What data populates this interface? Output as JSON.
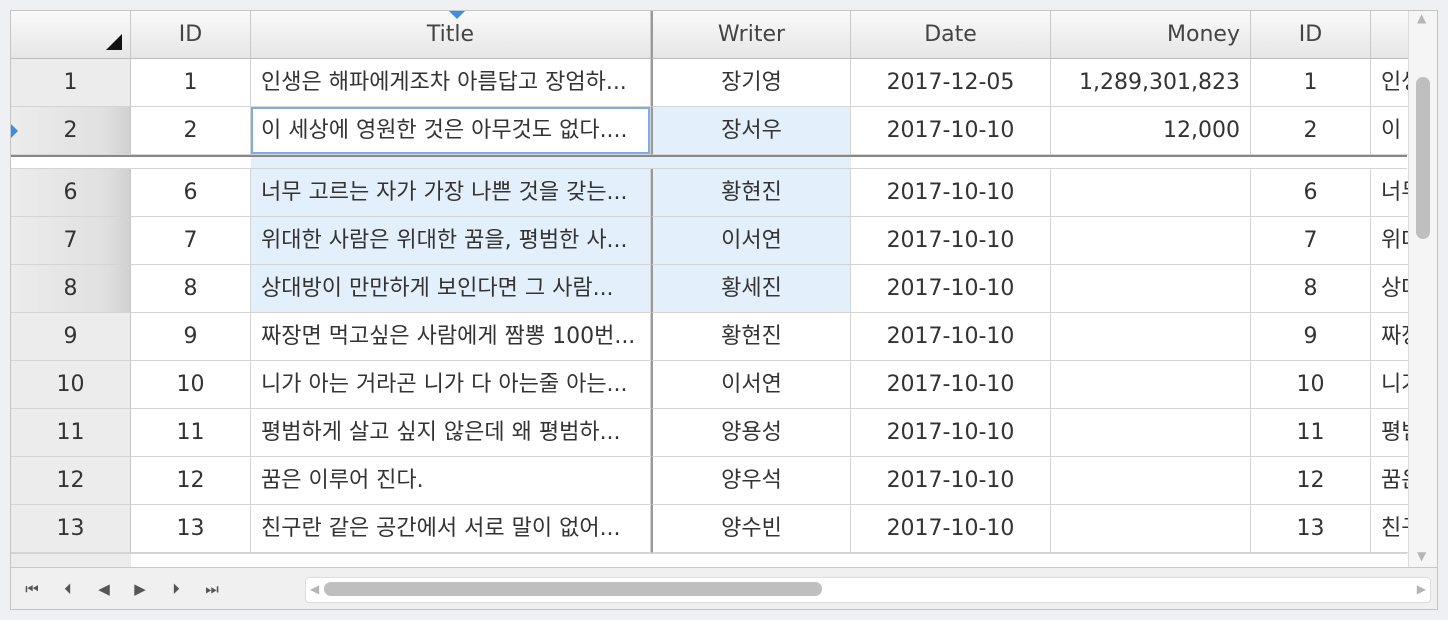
{
  "columns": {
    "id": "ID",
    "title": "Title",
    "writer": "Writer",
    "date": "Date",
    "money": "Money",
    "id2": "ID"
  },
  "rows": [
    {
      "rownum": "1",
      "id": "1",
      "title": "인생은 해파에게조차 아름답고 장엄하...",
      "writer": "장기영",
      "date": "2017-12-05",
      "money": "1,289,301,823",
      "id2": "1",
      "extra": "인생"
    },
    {
      "rownum": "2",
      "id": "2",
      "title": "이 세상에 영원한 것은 아무것도 없다....",
      "writer": "장서우",
      "date": "2017-10-10",
      "money": "12,000",
      "id2": "2",
      "extra": "이"
    },
    {
      "rownum": "6",
      "id": "6",
      "title": "너무 고르는 자가 가장 나쁜 것을 갖는...",
      "writer": "황현진",
      "date": "2017-10-10",
      "money": "",
      "id2": "6",
      "extra": "너무"
    },
    {
      "rownum": "7",
      "id": "7",
      "title": "위대한 사람은 위대한 꿈을, 평범한 사...",
      "writer": "이서연",
      "date": "2017-10-10",
      "money": "",
      "id2": "7",
      "extra": "위대"
    },
    {
      "rownum": "8",
      "id": "8",
      "title": "상대방이 만만하게 보인다면 그 사람...",
      "writer": "황세진",
      "date": "2017-10-10",
      "money": "",
      "id2": "8",
      "extra": "상대"
    },
    {
      "rownum": "9",
      "id": "9",
      "title": "짜장면 먹고싶은 사람에게 짬뽕 100번...",
      "writer": "황현진",
      "date": "2017-10-10",
      "money": "",
      "id2": "9",
      "extra": "짜장"
    },
    {
      "rownum": "10",
      "id": "10",
      "title": "니가 아는 거라곤 니가 다 아는줄 아는...",
      "writer": "이서연",
      "date": "2017-10-10",
      "money": "",
      "id2": "10",
      "extra": "니가"
    },
    {
      "rownum": "11",
      "id": "11",
      "title": "평범하게 살고 싶지 않은데 왜 평범하...",
      "writer": "양용성",
      "date": "2017-10-10",
      "money": "",
      "id2": "11",
      "extra": "평범"
    },
    {
      "rownum": "12",
      "id": "12",
      "title": "꿈은 이루어 진다.",
      "writer": "양우석",
      "date": "2017-10-10",
      "money": "",
      "id2": "12",
      "extra": "꿈은"
    },
    {
      "rownum": "13",
      "id": "13",
      "title": "친구란 같은 공간에서 서로 말이 없어...",
      "writer": "양수빈",
      "date": "2017-10-10",
      "money": "",
      "id2": "13",
      "extra": "친구"
    }
  ],
  "navigation": {
    "first": "⏮",
    "prev_page": "⏴",
    "prev": "◀",
    "next": "▶",
    "next_page": "⏵",
    "last": "⏭"
  },
  "colors": {
    "selection": "#e3f0fc",
    "focus_border": "#7aaee6",
    "sort_indicator": "#3d8ee0"
  }
}
